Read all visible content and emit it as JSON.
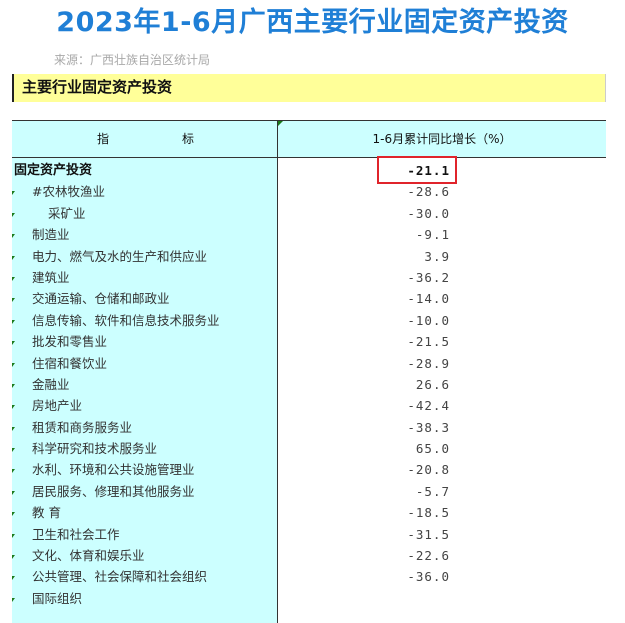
{
  "headline": "2023年1-6月广西主要行业固定资产投资",
  "source": "来源：广西壮族自治区统计局",
  "section_title": "主要行业固定资产投资",
  "table": {
    "header_col1_a": "指",
    "header_col1_b": "标",
    "header_col2": "1-6月累计同比增长（%）",
    "rows": [
      {
        "label": "固定资产投资",
        "value": "-21.1"
      },
      {
        "label": "#农林牧渔业",
        "value": "-28.6"
      },
      {
        "label": "采矿业",
        "value": "-30.0"
      },
      {
        "label": "制造业",
        "value": "-9.1"
      },
      {
        "label": "电力、燃气及水的生产和供应业",
        "value": "3.9"
      },
      {
        "label": "建筑业",
        "value": "-36.2"
      },
      {
        "label": "交通运输、仓储和邮政业",
        "value": "-14.0"
      },
      {
        "label": "信息传输、软件和信息技术服务业",
        "value": "-10.0"
      },
      {
        "label": "批发和零售业",
        "value": "-21.5"
      },
      {
        "label": "住宿和餐饮业",
        "value": "-28.9"
      },
      {
        "label": "金融业",
        "value": "26.6"
      },
      {
        "label": "房地产业",
        "value": "-42.4"
      },
      {
        "label": "租赁和商务服务业",
        "value": "-38.3"
      },
      {
        "label": "科学研究和技术服务业",
        "value": "65.0"
      },
      {
        "label": "水利、环境和公共设施管理业",
        "value": "-20.8"
      },
      {
        "label": "居民服务、修理和其他服务业",
        "value": "-5.7"
      },
      {
        "label": "教 育",
        "value": "-18.5"
      },
      {
        "label": "卫生和社会工作",
        "value": "-31.5"
      },
      {
        "label": "文化、体育和娱乐业",
        "value": "-22.6"
      },
      {
        "label": "公共管理、社会保障和社会组织",
        "value": "-36.0"
      },
      {
        "label": "国际组织",
        "value": ""
      }
    ]
  },
  "colors": {
    "headline": "#1f7fd6",
    "section_bg": "#ffff99",
    "cyan_bg": "#ccffff",
    "highlight": "#e0242b"
  }
}
